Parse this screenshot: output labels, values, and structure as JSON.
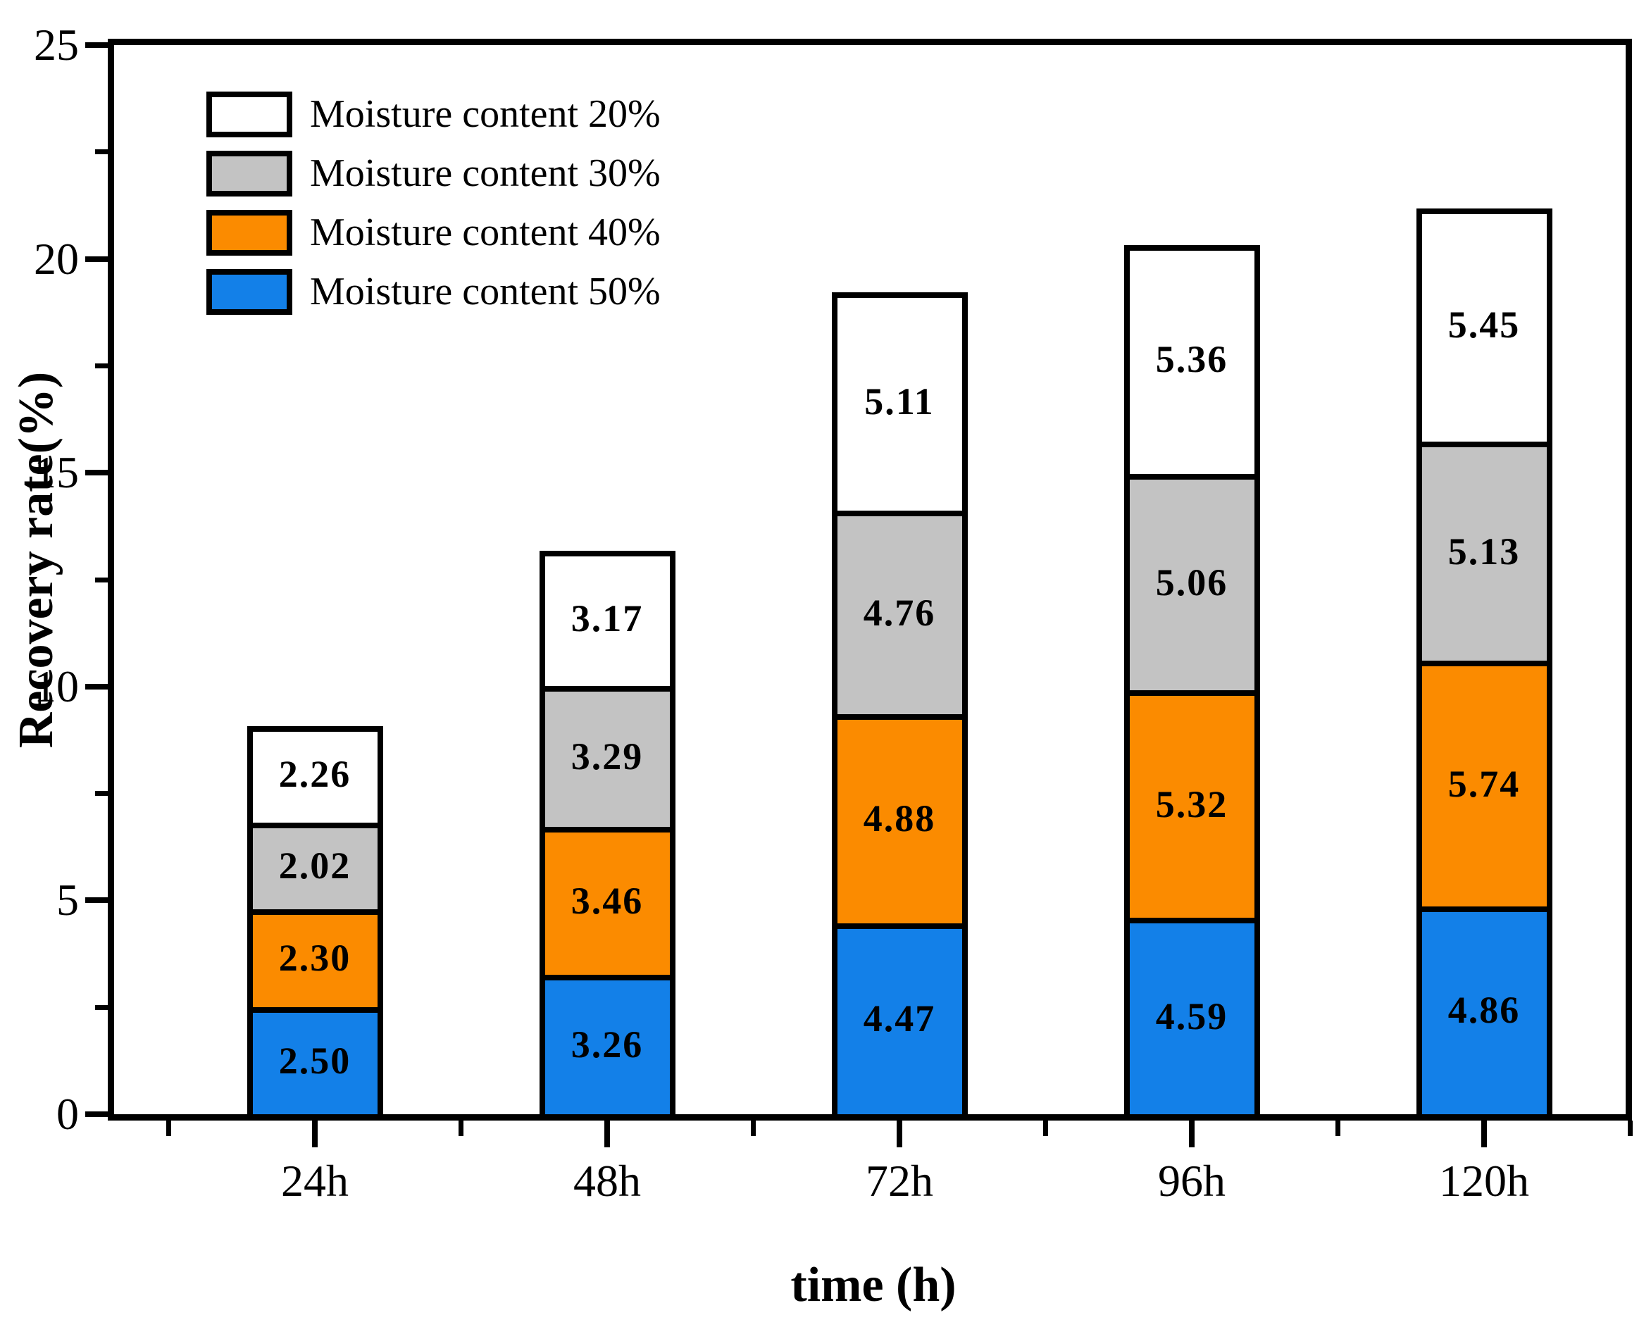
{
  "figure": {
    "background": "#FFFFFF",
    "axis_color": "#000000"
  },
  "chart_data": {
    "type": "bar",
    "stacked": true,
    "xlabel": "time (h)",
    "ylabel": "Recovery rate(%)",
    "categories": [
      "24h",
      "48h",
      "72h",
      "96h",
      "120h"
    ],
    "series": [
      {
        "name": "Moisture content 50%",
        "color": "#1380E8",
        "values": [
          2.5,
          3.26,
          4.47,
          4.59,
          4.86
        ],
        "labels": [
          "2.50",
          "3.26",
          "4.47",
          "4.59",
          "4.86"
        ]
      },
      {
        "name": "Moisture content 40%",
        "color": "#FB8B00",
        "values": [
          2.3,
          3.46,
          4.88,
          5.32,
          5.74
        ],
        "labels": [
          "2.30",
          "3.46",
          "4.88",
          "5.32",
          "5.74"
        ]
      },
      {
        "name": "Moisture content 30%",
        "color": "#C3C3C3",
        "values": [
          2.02,
          3.29,
          4.76,
          5.06,
          5.13
        ],
        "labels": [
          "2.02",
          "3.29",
          "4.76",
          "5.06",
          "5.13"
        ]
      },
      {
        "name": "Moisture content 20%",
        "color": "#FFFFFF",
        "values": [
          2.26,
          3.17,
          5.11,
          5.36,
          5.45
        ],
        "labels": [
          "2.26",
          "3.17",
          "5.11",
          "5.36",
          "5.45"
        ]
      }
    ],
    "legend": [
      {
        "label": "Moisture content 20%",
        "color": "#FFFFFF"
      },
      {
        "label": "Moisture content 30%",
        "color": "#C3C3C3"
      },
      {
        "label": "Moisture content 40%",
        "color": "#FB8B00"
      },
      {
        "label": "Moisture content 50%",
        "color": "#1380E8"
      }
    ],
    "legend_position": "top-left-inside",
    "ylim": [
      0,
      25
    ],
    "yticks": [
      0,
      5,
      10,
      15,
      20,
      25
    ],
    "y_minor_ticks": [
      2.5,
      7.5,
      12.5,
      17.5,
      22.5
    ],
    "grid": false
  }
}
